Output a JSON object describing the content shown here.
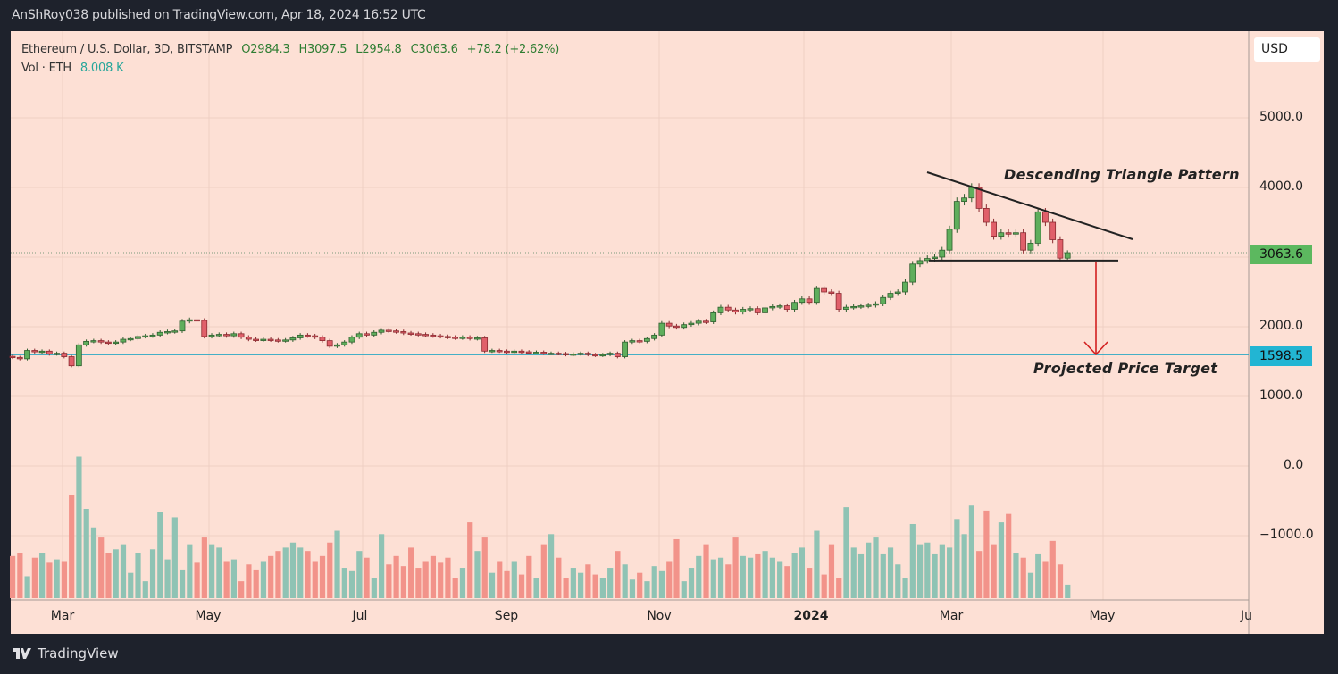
{
  "publish_line": "AnShRoy038 published on TradingView.com, Apr 18, 2024 16:52 UTC",
  "legend": {
    "symbol": "Ethereum / U.S. Dollar, 3D, BITSTAMP",
    "open": "O2984.3",
    "high": "H3097.5",
    "low": "L2954.8",
    "close": "C3063.6",
    "change": "+78.2 (+2.62%)",
    "volume_label": "Vol · ETH",
    "volume_value": "8.008 K"
  },
  "currency_button": "USD",
  "price_axis_labels": [
    "5000.0",
    "4000.0",
    "2000.0",
    "1000.0",
    "0.0",
    "−1000.0"
  ],
  "price_badges": {
    "last": "3063.6",
    "target": "1598.5"
  },
  "time_axis_labels": [
    "Mar",
    "May",
    "Jul",
    "Sep",
    "Nov",
    "2024",
    "Mar",
    "May",
    "Ju"
  ],
  "annotations": {
    "pattern": "Descending Triangle Pattern",
    "target": "Projected Price Target"
  },
  "footer_logo": "TradingView",
  "colors": {
    "background": "#fde0d5",
    "up_candle": "#5fae5c",
    "down_candle": "#e0606a",
    "up_volume": "#8fc3b4",
    "down_volume": "#f2938a",
    "last_price_badge": "#5cb85f",
    "target_line": "#2aa8c4",
    "arrow": "#d32020"
  },
  "chart_data": {
    "type": "candlestick",
    "interval": "3D",
    "x_range": [
      "2023-02",
      "2024-04-17"
    ],
    "ylim": [
      -1000,
      5000
    ],
    "grid": true,
    "last_ohlc": {
      "open": 2984.3,
      "high": 3097.5,
      "low": 2954.8,
      "close": 3063.6
    },
    "close": [
      1560,
      1540,
      1660,
      1640,
      1650,
      1610,
      1620,
      1570,
      1440,
      1740,
      1790,
      1800,
      1780,
      1770,
      1780,
      1820,
      1830,
      1860,
      1870,
      1880,
      1920,
      1930,
      1940,
      2080,
      2100,
      2090,
      1860,
      1880,
      1890,
      1870,
      1900,
      1850,
      1820,
      1810,
      1820,
      1810,
      1800,
      1810,
      1840,
      1880,
      1870,
      1850,
      1800,
      1720,
      1740,
      1780,
      1850,
      1900,
      1880,
      1920,
      1950,
      1940,
      1930,
      1910,
      1900,
      1890,
      1880,
      1870,
      1860,
      1850,
      1840,
      1850,
      1830,
      1840,
      1650,
      1660,
      1650,
      1640,
      1650,
      1640,
      1630,
      1635,
      1620,
      1620,
      1615,
      1600,
      1610,
      1620,
      1600,
      1590,
      1600,
      1620,
      1570,
      1780,
      1800,
      1790,
      1830,
      1880,
      2050,
      2010,
      1990,
      2030,
      2050,
      2080,
      2070,
      2200,
      2280,
      2240,
      2210,
      2250,
      2260,
      2200,
      2270,
      2290,
      2300,
      2250,
      2350,
      2400,
      2350,
      2550,
      2500,
      2480,
      2250,
      2280,
      2290,
      2300,
      2310,
      2330,
      2420,
      2480,
      2500,
      2640,
      2900,
      2950,
      2980,
      3000,
      3100,
      3400,
      3800,
      3850,
      4000,
      3700,
      3500,
      3300,
      3350,
      3330,
      3350,
      3100,
      3200,
      3650,
      3500,
      3250,
      2985,
      3063.6
    ],
    "volume_k": [
      25,
      27,
      13,
      24,
      27,
      21,
      23,
      22,
      61,
      84,
      53,
      42,
      36,
      27,
      29,
      32,
      15,
      27,
      10,
      29,
      51,
      23,
      48,
      17,
      32,
      21,
      36,
      32,
      30,
      22,
      23,
      10,
      20,
      17,
      22,
      25,
      28,
      30,
      33,
      30,
      28,
      22,
      25,
      33,
      40,
      18,
      16,
      28,
      24,
      12,
      38,
      20,
      25,
      19,
      30,
      18,
      22,
      25,
      21,
      24,
      12,
      18,
      45,
      28,
      36,
      15,
      22,
      16,
      22,
      14,
      25,
      12,
      32,
      38,
      24,
      12,
      18,
      15,
      20,
      14,
      12,
      18,
      28,
      20,
      11,
      15,
      10,
      19,
      16,
      22,
      35,
      10,
      18,
      25,
      32,
      23,
      24,
      20,
      36,
      25,
      24,
      26,
      28,
      24,
      22,
      19,
      27,
      30,
      18,
      40,
      14,
      32,
      12,
      54,
      30,
      26,
      33,
      36,
      26,
      30,
      20,
      12,
      44,
      32,
      33,
      26,
      32,
      30,
      47,
      38,
      55,
      28,
      52,
      32,
      45,
      50,
      27,
      24,
      15,
      26,
      22,
      34,
      20,
      8
    ],
    "horizontal_levels": {
      "last_price": 3063.6,
      "projected_target": 1598.5,
      "triangle_support": 2950
    },
    "triangle_resistance": {
      "from": 4150,
      "to": 3300
    }
  }
}
